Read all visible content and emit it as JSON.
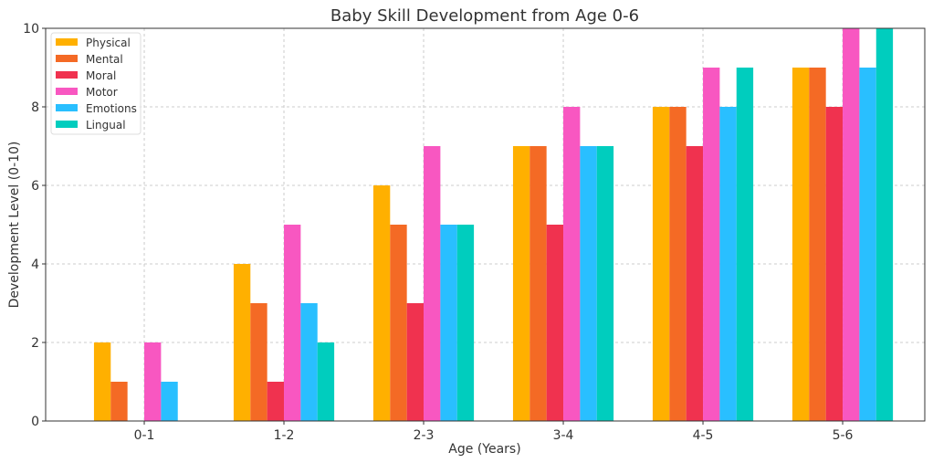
{
  "chart_data": {
    "type": "bar",
    "title": "Baby Skill Development from Age 0-6",
    "xlabel": "Age (Years)",
    "ylabel": "Development Level (0-10)",
    "categories": [
      "0-1",
      "1-2",
      "2-3",
      "3-4",
      "4-5",
      "5-6"
    ],
    "ylim": [
      0,
      10
    ],
    "yticks": [
      "0",
      "2",
      "4",
      "6",
      "8",
      "10"
    ],
    "grid": true,
    "legend_position": "top-left",
    "series": [
      {
        "name": "Physical",
        "color": "#FFB000",
        "values": [
          2,
          4,
          6,
          7,
          8,
          9
        ]
      },
      {
        "name": "Mental",
        "color": "#F46A25",
        "values": [
          1,
          3,
          5,
          7,
          8,
          9
        ]
      },
      {
        "name": "Moral",
        "color": "#F0324F",
        "values": [
          0,
          1,
          3,
          5,
          7,
          8
        ]
      },
      {
        "name": "Motor",
        "color": "#F857C1",
        "values": [
          2,
          5,
          7,
          8,
          9,
          10
        ]
      },
      {
        "name": "Emotions",
        "color": "#29BFFF",
        "values": [
          1,
          3,
          5,
          7,
          8,
          9
        ]
      },
      {
        "name": "Lingual",
        "color": "#00CDBE",
        "values": [
          0,
          2,
          5,
          7,
          9,
          10
        ]
      }
    ]
  }
}
